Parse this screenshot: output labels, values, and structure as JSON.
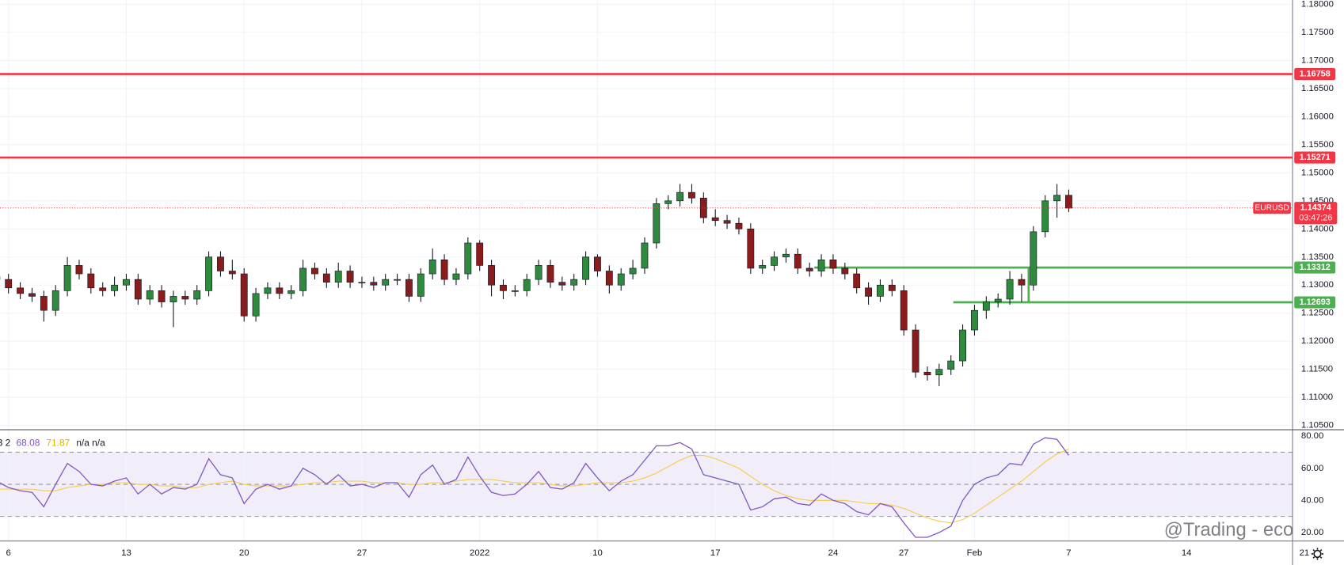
{
  "chart_data": {
    "type": "candlestick",
    "symbol": "EURUSD",
    "countdown": "03:47:26",
    "watermark": "@Trading - eco",
    "up_color": "#2e8b3e",
    "down_color": "#8b1c1c",
    "x": [
      -0.5,
      0,
      0.5,
      1,
      1.5,
      2,
      2.5,
      3,
      3.5,
      4,
      4.5,
      5,
      5.5,
      6,
      6.5,
      7,
      7.5,
      8,
      8.5,
      9,
      9.5,
      10,
      10.5,
      11,
      11.5,
      12,
      12.5,
      13,
      13.5,
      14,
      14.5,
      15,
      15.5,
      16,
      16.5,
      17,
      17.5,
      18,
      18.5,
      19,
      19.5,
      20,
      20.5,
      21,
      21.5,
      22,
      22.5,
      23,
      23.5,
      24,
      24.5,
      25,
      25.5,
      26,
      26.5,
      27,
      27.5,
      28,
      28.5,
      29,
      29.5,
      30,
      30.5,
      31,
      31.5,
      32,
      32.5,
      33,
      33.5,
      34,
      34.5,
      35,
      35.5,
      36,
      36.5,
      37,
      37.5,
      38,
      38.5,
      39,
      39.5,
      40,
      40.5,
      41,
      41.5,
      42,
      42.5,
      43,
      43.5,
      44,
      44.5,
      45
    ],
    "ohlc": [
      [
        1.1315,
        1.1325,
        1.13,
        1.131
      ],
      [
        1.131,
        1.132,
        1.1285,
        1.1295
      ],
      [
        1.1295,
        1.1305,
        1.1275,
        1.1285
      ],
      [
        1.1285,
        1.1295,
        1.127,
        1.128
      ],
      [
        1.128,
        1.129,
        1.1235,
        1.1255
      ],
      [
        1.1255,
        1.13,
        1.1245,
        1.129
      ],
      [
        1.129,
        1.135,
        1.128,
        1.1335
      ],
      [
        1.1335,
        1.1345,
        1.131,
        1.132
      ],
      [
        1.132,
        1.133,
        1.1285,
        1.1295
      ],
      [
        1.1295,
        1.1305,
        1.128,
        1.129
      ],
      [
        1.129,
        1.1315,
        1.128,
        1.13
      ],
      [
        1.13,
        1.132,
        1.129,
        1.131
      ],
      [
        1.131,
        1.132,
        1.1265,
        1.1275
      ],
      [
        1.1275,
        1.13,
        1.1265,
        1.129
      ],
      [
        1.129,
        1.13,
        1.126,
        1.127
      ],
      [
        1.127,
        1.129,
        1.1225,
        1.128
      ],
      [
        1.128,
        1.129,
        1.1265,
        1.1275
      ],
      [
        1.1275,
        1.13,
        1.1265,
        1.129
      ],
      [
        1.129,
        1.136,
        1.128,
        1.135
      ],
      [
        1.135,
        1.136,
        1.1315,
        1.1325
      ],
      [
        1.1325,
        1.1345,
        1.131,
        1.132
      ],
      [
        1.132,
        1.133,
        1.1235,
        1.1245
      ],
      [
        1.1245,
        1.1295,
        1.1235,
        1.1285
      ],
      [
        1.1285,
        1.1305,
        1.1275,
        1.1295
      ],
      [
        1.1295,
        1.1305,
        1.1275,
        1.1285
      ],
      [
        1.1285,
        1.13,
        1.1275,
        1.129
      ],
      [
        1.129,
        1.1345,
        1.128,
        1.133
      ],
      [
        1.133,
        1.134,
        1.131,
        1.132
      ],
      [
        1.132,
        1.133,
        1.1295,
        1.1305
      ],
      [
        1.1305,
        1.134,
        1.1295,
        1.1325
      ],
      [
        1.1325,
        1.1335,
        1.1295,
        1.1305
      ],
      [
        1.1305,
        1.1315,
        1.1295,
        1.1305
      ],
      [
        1.1305,
        1.1315,
        1.129,
        1.13
      ],
      [
        1.13,
        1.132,
        1.129,
        1.131
      ],
      [
        1.131,
        1.132,
        1.13,
        1.131
      ],
      [
        1.131,
        1.132,
        1.127,
        1.128
      ],
      [
        1.128,
        1.133,
        1.127,
        1.132
      ],
      [
        1.132,
        1.1365,
        1.131,
        1.1345
      ],
      [
        1.1345,
        1.1355,
        1.13,
        1.131
      ],
      [
        1.131,
        1.133,
        1.13,
        1.132
      ],
      [
        1.132,
        1.1385,
        1.131,
        1.1375
      ],
      [
        1.1375,
        1.138,
        1.1325,
        1.1335
      ],
      [
        1.1335,
        1.1345,
        1.128,
        1.13
      ],
      [
        1.13,
        1.131,
        1.1275,
        1.129
      ],
      [
        1.129,
        1.13,
        1.128,
        1.129
      ],
      [
        1.129,
        1.132,
        1.128,
        1.131
      ],
      [
        1.131,
        1.1345,
        1.13,
        1.1335
      ],
      [
        1.1335,
        1.1345,
        1.1295,
        1.1305
      ],
      [
        1.1305,
        1.1315,
        1.129,
        1.13
      ],
      [
        1.13,
        1.132,
        1.129,
        1.131
      ],
      [
        1.131,
        1.136,
        1.13,
        1.135
      ],
      [
        1.135,
        1.1355,
        1.1315,
        1.1325
      ],
      [
        1.1325,
        1.1335,
        1.1285,
        1.13
      ],
      [
        1.13,
        1.133,
        1.129,
        1.132
      ],
      [
        1.132,
        1.1345,
        1.131,
        1.133
      ],
      [
        1.133,
        1.1385,
        1.132,
        1.1375
      ],
      [
        1.1375,
        1.1455,
        1.1365,
        1.1445
      ],
      [
        1.1445,
        1.146,
        1.1435,
        1.145
      ],
      [
        1.145,
        1.148,
        1.144,
        1.1465
      ],
      [
        1.1465,
        1.148,
        1.1445,
        1.1455
      ],
      [
        1.1455,
        1.1465,
        1.141,
        1.142
      ],
      [
        1.142,
        1.1435,
        1.1405,
        1.1415
      ],
      [
        1.1415,
        1.1425,
        1.14,
        1.141
      ],
      [
        1.141,
        1.142,
        1.139,
        1.14
      ],
      [
        1.14,
        1.141,
        1.132,
        1.133
      ],
      [
        1.133,
        1.1345,
        1.132,
        1.1335
      ],
      [
        1.1335,
        1.136,
        1.1325,
        1.135
      ],
      [
        1.135,
        1.1365,
        1.134,
        1.1355
      ],
      [
        1.1355,
        1.1365,
        1.132,
        1.133
      ],
      [
        1.133,
        1.134,
        1.1315,
        1.1325
      ],
      [
        1.1325,
        1.1355,
        1.1315,
        1.1345
      ],
      [
        1.1345,
        1.1355,
        1.132,
        1.133
      ],
      [
        1.133,
        1.134,
        1.131,
        1.132
      ],
      [
        1.132,
        1.133,
        1.1285,
        1.1295
      ],
      [
        1.1295,
        1.1305,
        1.1265,
        1.128
      ],
      [
        1.128,
        1.131,
        1.127,
        1.13
      ],
      [
        1.13,
        1.131,
        1.128,
        1.129
      ],
      [
        1.129,
        1.13,
        1.121,
        1.122
      ],
      [
        1.122,
        1.123,
        1.1135,
        1.1145
      ],
      [
        1.1145,
        1.1155,
        1.113,
        1.114
      ],
      [
        1.114,
        1.116,
        1.112,
        1.115
      ],
      [
        1.115,
        1.1175,
        1.114,
        1.1165
      ],
      [
        1.1165,
        1.123,
        1.1155,
        1.122
      ],
      [
        1.122,
        1.1265,
        1.121,
        1.1255
      ],
      [
        1.1255,
        1.128,
        1.124,
        1.127
      ],
      [
        1.127,
        1.1285,
        1.126,
        1.1275
      ],
      [
        1.1275,
        1.1325,
        1.1265,
        1.131
      ],
      [
        1.131,
        1.132,
        1.127,
        1.13
      ],
      [
        1.13,
        1.1405,
        1.129,
        1.1395
      ],
      [
        1.1395,
        1.146,
        1.1385,
        1.145
      ],
      [
        1.145,
        1.148,
        1.142,
        1.146
      ],
      [
        1.146,
        1.147,
        1.143,
        1.1437
      ]
    ],
    "xlim": [
      -0.36,
      54.5
    ],
    "xticks": [
      {
        "value": 0,
        "label": "6"
      },
      {
        "value": 5,
        "label": "13"
      },
      {
        "value": 10,
        "label": "20"
      },
      {
        "value": 15,
        "label": "27"
      },
      {
        "value": 20,
        "label": "2022"
      },
      {
        "value": 25,
        "label": "10"
      },
      {
        "value": 30,
        "label": "17"
      },
      {
        "value": 35,
        "label": "24"
      },
      {
        "value": 38,
        "label": "27"
      },
      {
        "value": 41,
        "label": "Feb"
      },
      {
        "value": 45,
        "label": "7"
      },
      {
        "value": 50,
        "label": "14"
      },
      {
        "value": 55,
        "label": "21"
      }
    ],
    "ylim": [
      1.10424,
      1.18076
    ],
    "yticks": [
      {
        "value": 1.18,
        "label": "1.18000"
      },
      {
        "value": 1.175,
        "label": "1.17500"
      },
      {
        "value": 1.17,
        "label": "1.17000"
      },
      {
        "value": 1.165,
        "label": "1.16500"
      },
      {
        "value": 1.16,
        "label": "1.16000"
      },
      {
        "value": 1.155,
        "label": "1.15500"
      },
      {
        "value": 1.15,
        "label": "1.15000"
      },
      {
        "value": 1.145,
        "label": "1.14500"
      },
      {
        "value": 1.14,
        "label": "1.14000"
      },
      {
        "value": 1.135,
        "label": "1.13500"
      },
      {
        "value": 1.13,
        "label": "1.13000"
      },
      {
        "value": 1.125,
        "label": "1.12500"
      },
      {
        "value": 1.12,
        "label": "1.12000"
      },
      {
        "value": 1.115,
        "label": "1.11500"
      },
      {
        "value": 1.11,
        "label": "1.11000"
      },
      {
        "value": 1.105,
        "label": "1.10500"
      }
    ],
    "grid": true,
    "last_price": 1.14374,
    "last_color": "#f23645",
    "levels": [
      {
        "value": 1.16758,
        "color": "#f23645",
        "x_start": -0.36
      },
      {
        "value": 1.15271,
        "color": "#f23645",
        "x_start": -0.36
      },
      {
        "value": 1.13312,
        "color": "#4caf50",
        "x_start": 34.2
      },
      {
        "value": 1.12693,
        "color": "#4caf50",
        "x_start": 40.1
      }
    ],
    "connector_x": 43.3,
    "rsi": {
      "legend_prefix": "3 2",
      "legend_tail": "n/a n/a",
      "color": "#7e57c2",
      "ma_color": "#f7c948",
      "ylim": [
        14.67,
        83.47
      ],
      "yticks": [
        {
          "value": 80,
          "label": "80.00"
        },
        {
          "value": 60,
          "label": "60.00"
        },
        {
          "value": 40,
          "label": "40.00"
        },
        {
          "value": 20,
          "label": "20.00"
        }
      ],
      "bands": [
        30,
        50,
        70
      ],
      "values": [
        52,
        48,
        46,
        45,
        36,
        50,
        63,
        58,
        50,
        49,
        52,
        54,
        44,
        50,
        44,
        48,
        47,
        50,
        66,
        56,
        54,
        38,
        47,
        50,
        47,
        49,
        60,
        56,
        50,
        56,
        49,
        50,
        48,
        51,
        51,
        42,
        56,
        62,
        50,
        53,
        67,
        55,
        45,
        43,
        44,
        50,
        58,
        48,
        47,
        51,
        63,
        54,
        46,
        52,
        56,
        65,
        74,
        74,
        76,
        72,
        56,
        54,
        52,
        50,
        34,
        36,
        41,
        42,
        38,
        37,
        44,
        40,
        38,
        33,
        31,
        38,
        36,
        26,
        17,
        17,
        20,
        24,
        40,
        50,
        54,
        56,
        63,
        62,
        75,
        79,
        78,
        68.08
      ],
      "ma": [
        47,
        47,
        47,
        47,
        46,
        46,
        48,
        49,
        50,
        50,
        51,
        51,
        50,
        50,
        49,
        49,
        48,
        48,
        50,
        51,
        52,
        50,
        49,
        49,
        49,
        49,
        50,
        51,
        51,
        52,
        52,
        52,
        51,
        51,
        51,
        50,
        50,
        51,
        51,
        52,
        53,
        53,
        53,
        52,
        51,
        51,
        51,
        50,
        49,
        49,
        50,
        51,
        51,
        51,
        52,
        54,
        57,
        61,
        65,
        68,
        68,
        66,
        63,
        60,
        55,
        50,
        46,
        43,
        41,
        40,
        40,
        40,
        40,
        39,
        38,
        38,
        37,
        35,
        32,
        29,
        27,
        26,
        28,
        32,
        37,
        42,
        47,
        52,
        58,
        64,
        69,
        71.87
      ]
    }
  }
}
